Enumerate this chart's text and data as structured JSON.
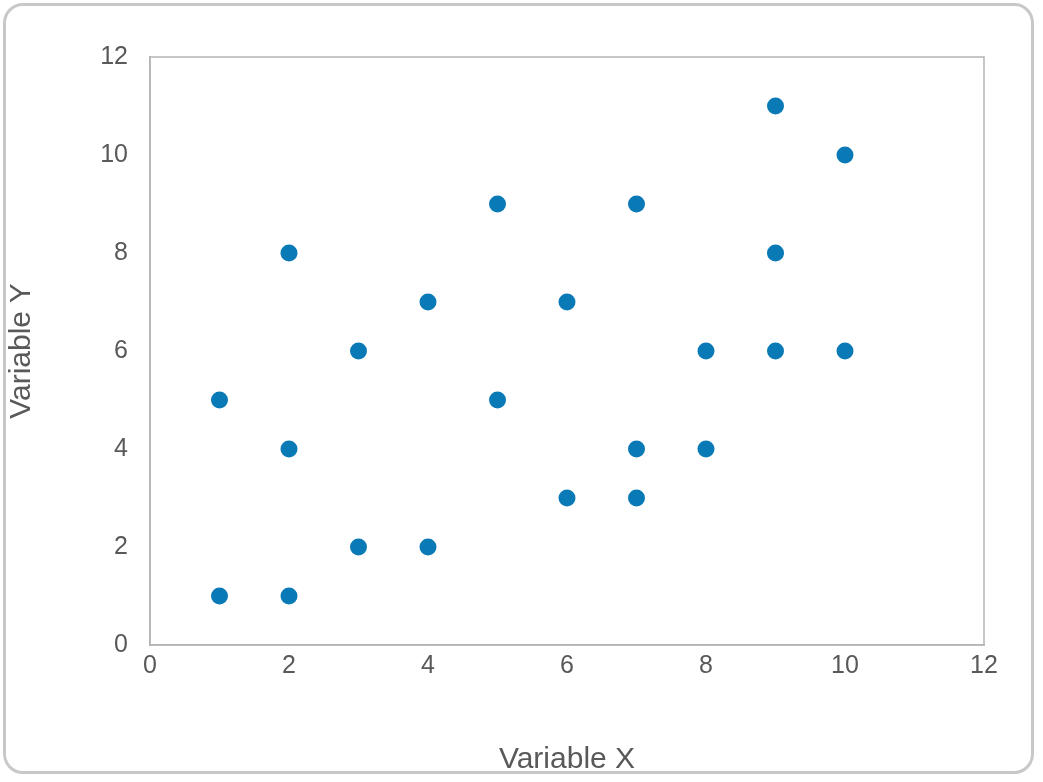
{
  "chart_data": {
    "type": "scatter",
    "xlabel": "Variable X",
    "ylabel": "Variable Y",
    "x": [
      1,
      1,
      2,
      2,
      2,
      3,
      3,
      4,
      4,
      5,
      5,
      6,
      6,
      7,
      7,
      7,
      8,
      8,
      9,
      9,
      9,
      10,
      10
    ],
    "series": [
      {
        "color": "#0a7ab6",
        "values": [
          5,
          1,
          8,
          4,
          1,
          6,
          2,
          7,
          2,
          9,
          5,
          7,
          3,
          9,
          4,
          3,
          6,
          4,
          11,
          8,
          6,
          10,
          6
        ]
      }
    ],
    "xlim": [
      0,
      12
    ],
    "xticks": [
      0,
      2,
      4,
      6,
      8,
      10,
      12
    ],
    "ylim": [
      0,
      12
    ],
    "yticks": [
      0,
      2,
      4,
      6,
      8,
      10,
      12
    ],
    "marker": "circle",
    "legend": false,
    "grid": false
  }
}
